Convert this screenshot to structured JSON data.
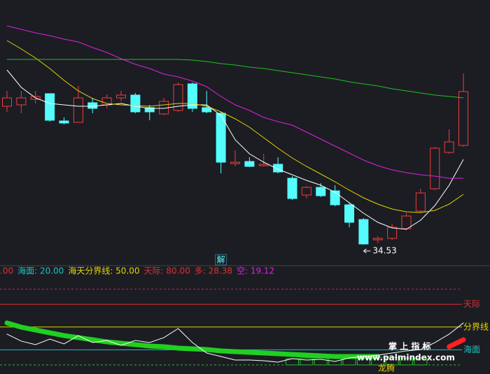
{
  "chart_data": [
    {
      "type": "candlestick",
      "up_color": "#f03c3c",
      "down_color": "#54fcfc",
      "ylim": [
        31.53,
        69.53
      ],
      "open": [
        54.33,
        54.53,
        55.33,
        56.13,
        52.23,
        52.03,
        54.83,
        54.53,
        55.53,
        55.93,
        54.13,
        53.23,
        53.73,
        57.53,
        54.13,
        53.33,
        46.13,
        46.43,
        45.83,
        46.03,
        44.03,
        41.63,
        42.73,
        42.23,
        40.23,
        38.13,
        35.23,
        35.43,
        36.83,
        39.33,
        42.53,
        47.73,
        48.73
      ],
      "high": [
        56.53,
        56.53,
        56.53,
        56.13,
        52.73,
        57.23,
        55.53,
        56.03,
        56.53,
        56.23,
        54.53,
        55.53,
        57.73,
        57.73,
        56.53,
        53.53,
        48.03,
        47.03,
        47.53,
        47.03,
        44.33,
        42.93,
        43.33,
        43.03,
        40.53,
        38.33,
        35.73,
        37.53,
        39.03,
        42.53,
        48.53,
        51.03,
        59.03
      ],
      "low": [
        53.53,
        53.33,
        54.73,
        52.13,
        51.73,
        52.03,
        53.33,
        54.03,
        55.03,
        53.33,
        52.33,
        53.03,
        53.53,
        53.53,
        53.33,
        44.73,
        45.73,
        45.63,
        45.73,
        44.73,
        40.93,
        41.13,
        41.33,
        40.03,
        37.03,
        34.53,
        34.73,
        35.23,
        36.63,
        39.03,
        42.33,
        47.53,
        48.53
      ],
      "close": [
        55.53,
        55.53,
        55.73,
        52.33,
        51.93,
        55.53,
        54.03,
        55.53,
        55.93,
        53.53,
        53.53,
        55.03,
        57.43,
        54.03,
        53.53,
        46.33,
        46.33,
        45.73,
        46.03,
        44.93,
        41.13,
        42.73,
        41.53,
        40.23,
        37.73,
        34.63,
        35.43,
        37.03,
        38.63,
        41.93,
        48.33,
        49.23,
        56.43
      ],
      "series": [
        {
          "color": "#ffffff",
          "values": [
            59.53,
            57.03,
            55.53,
            54.73,
            54.53,
            54.33,
            54.33,
            54.53,
            54.73,
            54.33,
            54.03,
            54.03,
            54.33,
            54.53,
            54.53,
            53.03,
            49.53,
            47.53,
            46.33,
            45.33,
            44.53,
            43.73,
            43.03,
            42.03,
            40.53,
            39.03,
            37.73,
            36.93,
            36.73,
            38.03,
            40.13,
            43.03,
            46.73
          ]
        },
        {
          "color": "#e6d200",
          "values": [
            63.73,
            62.53,
            61.23,
            59.73,
            58.03,
            56.53,
            55.43,
            54.73,
            54.53,
            54.43,
            54.33,
            54.53,
            54.73,
            54.73,
            54.33,
            53.53,
            52.53,
            51.33,
            49.83,
            48.33,
            46.93,
            45.73,
            44.63,
            43.53,
            42.33,
            41.23,
            40.33,
            39.63,
            39.23,
            39.13,
            39.43,
            40.33,
            41.73
          ]
        },
        {
          "color": "#e020e0",
          "values": [
            65.83,
            65.33,
            64.83,
            64.43,
            63.93,
            63.53,
            62.73,
            62.03,
            61.13,
            60.33,
            59.73,
            58.93,
            58.53,
            57.93,
            57.13,
            55.73,
            54.53,
            53.73,
            52.73,
            52.13,
            51.63,
            50.63,
            49.63,
            48.63,
            47.63,
            46.63,
            45.83,
            45.23,
            44.83,
            44.53,
            44.33,
            44.03,
            44.03
          ]
        },
        {
          "color": "#20c020",
          "values": [
            61.03,
            61.03,
            61.03,
            61.03,
            61.03,
            61.03,
            61.03,
            61.03,
            61.03,
            61.03,
            61.03,
            61.03,
            61.03,
            60.93,
            60.73,
            60.43,
            60.23,
            59.93,
            59.73,
            59.43,
            59.13,
            58.83,
            58.53,
            58.23,
            57.83,
            57.53,
            57.23,
            56.83,
            56.53,
            56.23,
            55.93,
            55.73,
            55.53
          ]
        }
      ],
      "marker": "解"
    },
    {
      "type": "line",
      "ylim": [
        -12,
        131
      ],
      "header": [
        {
          "text": ".00",
          "color": "#e03030"
        },
        {
          "text": "海面: 20.00",
          "color": "#20c0c0"
        },
        {
          "text": "海天分界线: 50.00",
          "color": "#e6d200"
        },
        {
          "text": "天际: 80.00",
          "color": "#e03030"
        },
        {
          "text": "多: 28.38",
          "color": "#e03030"
        },
        {
          "text": "空: 19.12",
          "color": "#e020e0"
        }
      ],
      "levels": [
        {
          "value": 100,
          "color": "#c02080",
          "dashed": true
        },
        {
          "value": 80,
          "name": "天际",
          "color": "#e03030"
        },
        {
          "value": 50,
          "name": "分界线",
          "color": "#e6d200"
        },
        {
          "value": 20,
          "name": "海面",
          "color": "#20c0c0"
        },
        {
          "value": 0,
          "color": "#20c020",
          "dashed": true
        }
      ],
      "series": [
        {
          "color": "#20d020",
          "thick": true,
          "values": [
            55.4,
            49.8,
            46.1,
            42.4,
            38.7,
            36.0,
            33.2,
            30.4,
            28.6,
            26.8,
            24.9,
            24.0,
            22.1,
            21.2,
            20.3,
            18.5,
            17.5,
            16.6,
            15.7,
            14.8,
            13.8,
            12.9,
            12.0,
            11.1,
            11.1,
            11.1,
            11.1,
            null,
            null,
            null,
            null,
            null,
            null
          ]
        },
        {
          "color": "#ff2020",
          "thick": true,
          "values": [
            null,
            null,
            null,
            null,
            null,
            null,
            null,
            null,
            null,
            null,
            null,
            null,
            null,
            null,
            null,
            null,
            null,
            null,
            null,
            null,
            null,
            null,
            null,
            null,
            null,
            null,
            null,
            null,
            null,
            null,
            null,
            24.0,
            33.2
          ]
        },
        {
          "color": "#ffffff",
          "values": [
            40.6,
            31.4,
            26.8,
            34.1,
            27.7,
            38.7,
            29.5,
            32.3,
            25.8,
            32.3,
            29.5,
            36.0,
            48.0,
            29.5,
            15.7,
            11.1,
            6.5,
            6.5,
            5.5,
            3.7,
            8.3,
            6.5,
            7.4,
            4.6,
            9.2,
            11.1,
            12.9,
            15.7,
            18.5,
            20.3,
            29.5,
            40.6,
            55.4
          ]
        }
      ],
      "bars": {
        "color": "#20c020",
        "values": [
          null,
          null,
          null,
          null,
          null,
          null,
          null,
          null,
          null,
          null,
          null,
          null,
          null,
          null,
          null,
          null,
          null,
          null,
          null,
          null,
          8,
          9,
          9,
          10,
          10,
          10,
          10,
          10,
          9,
          9,
          null,
          null,
          null
        ]
      },
      "label": "龙腾",
      "watermark": [
        "掌 上 指 标",
        "www.palmindex.com"
      ]
    }
  ]
}
